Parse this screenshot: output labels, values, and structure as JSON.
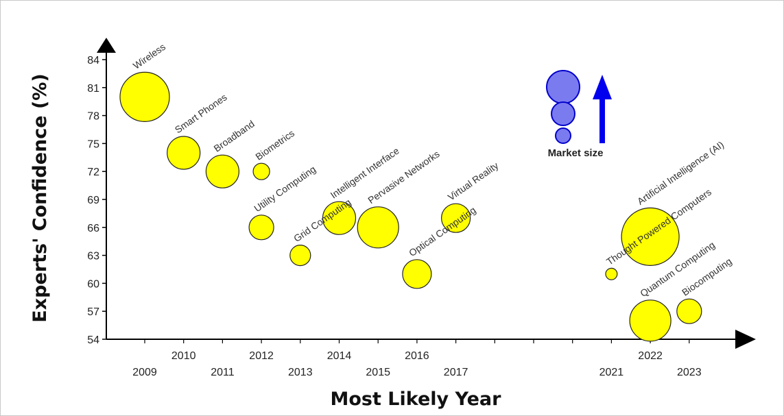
{
  "chart_data": {
    "type": "bubble",
    "xlabel": "Most Likely Year",
    "ylabel": "Experts' Confidence (%)",
    "ylim": [
      54,
      85
    ],
    "yticks": [
      54,
      57,
      60,
      63,
      66,
      69,
      72,
      75,
      78,
      81,
      84
    ],
    "xticks_upper": [
      "2010",
      "2012",
      "2014",
      "2016",
      "2022"
    ],
    "xticks_lower": [
      "2009",
      "2011",
      "2013",
      "2015",
      "2017",
      "2021",
      "2023"
    ],
    "bubble_color": "#ffff00",
    "legend": {
      "label": "Market size",
      "color": "#7b7bf0",
      "arrow_color": "#0000ee"
    },
    "points": [
      {
        "label": "Wireless",
        "year": 2009,
        "confidence": 80,
        "size": 5
      },
      {
        "label": "Smart Phones",
        "year": 2010,
        "confidence": 74,
        "size": 3
      },
      {
        "label": "Broadband",
        "year": 2011,
        "confidence": 72,
        "size": 3
      },
      {
        "label": "Biometrics",
        "year": 2012,
        "confidence": 72,
        "size": 1
      },
      {
        "label": "Utility Computing",
        "year": 2012,
        "confidence": 66,
        "size": 2
      },
      {
        "label": "Grid Computing",
        "year": 2013,
        "confidence": 63,
        "size": 1.5
      },
      {
        "label": "Intelligent Interface",
        "year": 2014,
        "confidence": 67,
        "size": 3
      },
      {
        "label": "Pervasive Networks",
        "year": 2015,
        "confidence": 66,
        "size": 4
      },
      {
        "label": "Optical Computing",
        "year": 2016,
        "confidence": 61,
        "size": 2.5
      },
      {
        "label": "Virtual Reality",
        "year": 2017,
        "confidence": 67,
        "size": 2.5
      },
      {
        "label": "Thought Powered Computers",
        "year": 2021,
        "confidence": 61,
        "size": 0.4
      },
      {
        "label": "Artificial Intelligence (AI)",
        "year": 2022,
        "confidence": 65,
        "size": 6
      },
      {
        "label": "Quantum Computing",
        "year": 2022,
        "confidence": 56,
        "size": 4
      },
      {
        "label": "Biocomputing",
        "year": 2023,
        "confidence": 57,
        "size": 2
      }
    ]
  }
}
